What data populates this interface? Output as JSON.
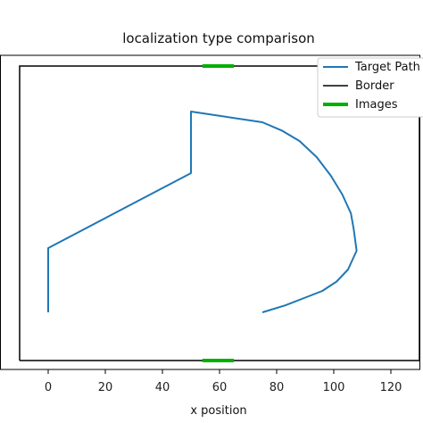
{
  "chart_data": {
    "type": "line",
    "title": "localization type comparison",
    "xlabel": "x position",
    "ylabel": "",
    "xlim": [
      -10,
      130
    ],
    "ylim": [
      -5,
      105
    ],
    "x_ticks": [
      0,
      20,
      40,
      60,
      80,
      100,
      120
    ],
    "grid": false,
    "legend_position": "top-right",
    "series": [
      {
        "name": "Target Path",
        "color": "#1f77b4",
        "x": [
          0,
          0,
          50,
          50,
          75,
          82,
          88,
          94,
          99,
          103,
          106,
          107,
          108,
          105,
          101,
          96,
          90,
          83,
          75
        ],
        "y": [
          13,
          37,
          65,
          88,
          84,
          80.8,
          77,
          71,
          64,
          57,
          50,
          44,
          36,
          29,
          24.5,
          21,
          18.5,
          15.6,
          13
        ]
      },
      {
        "name": "Border",
        "color": "#000000",
        "x": [
          -10,
          130,
          130,
          -10,
          -10
        ],
        "y": [
          -5,
          -5,
          105,
          105,
          -5
        ]
      },
      {
        "name": "Images",
        "color": "#00b000",
        "segments": [
          {
            "x": [
              54,
              65
            ],
            "y": [
              105,
              105
            ]
          },
          {
            "x": [
              54,
              65
            ],
            "y": [
              -5,
              -5
            ]
          }
        ]
      }
    ]
  }
}
